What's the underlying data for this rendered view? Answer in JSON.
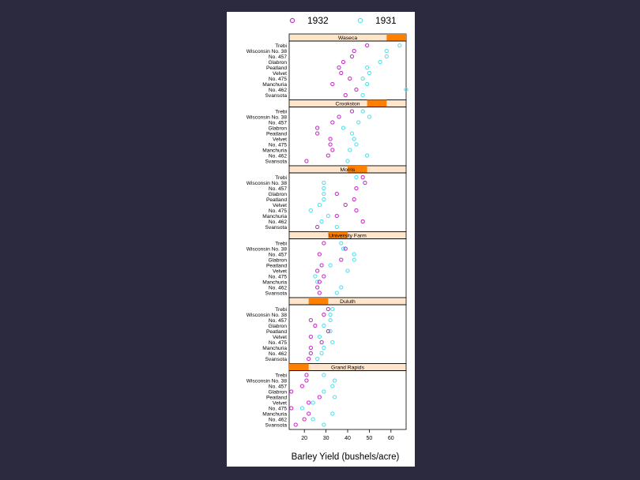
{
  "chart_data": {
    "type": "scatter",
    "xlabel": "Barley Yield (bushels/acre)",
    "x_ticks": [
      20,
      30,
      40,
      50,
      60
    ],
    "xlim": [
      13,
      67
    ],
    "legend": {
      "placement": "top",
      "entries": [
        {
          "name": "1932",
          "color": "#cc33cc"
        },
        {
          "name": "1931",
          "color": "#55e3ef"
        }
      ]
    },
    "strip_colors": {
      "background": "#ffe5cc",
      "indicator": "#ff7f00"
    },
    "varieties": [
      "Trebi",
      "Wisconsin No. 38",
      "No. 457",
      "Glabron",
      "Peatland",
      "Velvet",
      "No. 475",
      "Manchuria",
      "No. 462",
      "Svansota"
    ],
    "variety_labels": [
      "Trebi",
      "Wisconsin No. 38",
      "No. 457",
      "Glabron",
      "Peatland",
      "Velvet",
      "No. 475",
      "Manchuria",
      "No. 462",
      "Svansota"
    ],
    "panels": [
      {
        "site": "Waseca",
        "y1932": [
          49,
          43,
          42,
          38,
          36,
          37,
          41,
          33,
          44,
          39
        ],
        "y1931": [
          64,
          58,
          58,
          55,
          49,
          50,
          47,
          49,
          67,
          47
        ]
      },
      {
        "site": "Crookston",
        "y1932": [
          42,
          36,
          33,
          26,
          26,
          32,
          32,
          33,
          31,
          21
        ],
        "y1931": [
          47,
          50,
          45,
          38,
          42,
          43,
          44,
          41,
          49,
          40
        ]
      },
      {
        "site": "Morris",
        "y1932": [
          47,
          48,
          44,
          35,
          43,
          39,
          44,
          35,
          47,
          26
        ],
        "y1931": [
          44,
          29,
          29,
          29,
          29,
          27,
          23,
          31,
          28,
          35
        ]
      },
      {
        "site": "University Farm",
        "y1932": [
          29,
          39,
          27,
          37,
          28,
          26,
          29,
          27,
          26,
          27
        ],
        "y1931": [
          37,
          38,
          43,
          43,
          32,
          40,
          25,
          26,
          37,
          35
        ]
      },
      {
        "site": "Duluth",
        "y1932": [
          31,
          29,
          23,
          25,
          31,
          23,
          28,
          23,
          23,
          22
        ],
        "y1931": [
          33,
          32,
          32,
          29,
          32,
          27,
          33,
          29,
          28,
          26
        ]
      },
      {
        "site": "Grand Rapids",
        "y1932": [
          21,
          21,
          19,
          14,
          27,
          22,
          14,
          22,
          20,
          16
        ],
        "y1931": [
          29,
          34,
          33,
          29,
          34,
          24,
          19,
          33,
          24,
          29
        ]
      }
    ]
  }
}
